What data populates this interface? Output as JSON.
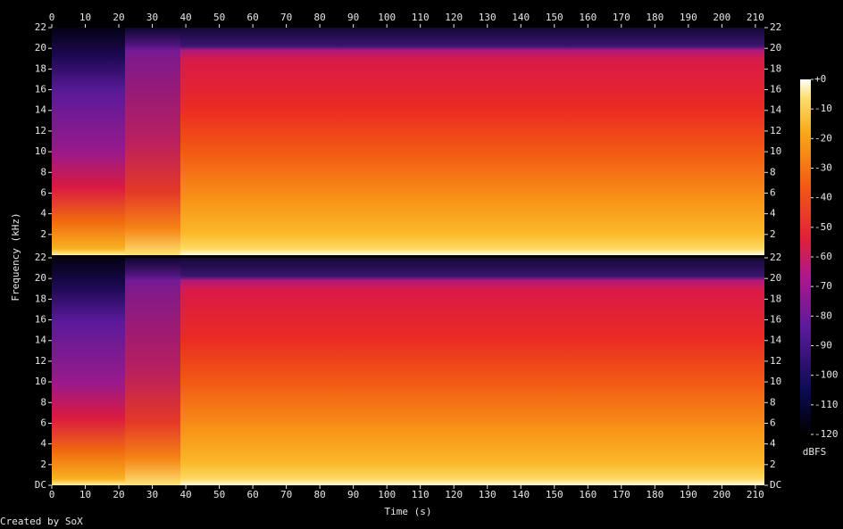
{
  "chart_data": [
    {
      "type": "spectrogram",
      "xlabel": "Time (s)",
      "ylabel": "Frequency (kHz)",
      "xlim": [
        0,
        212.7
      ],
      "xticks": [
        0,
        10,
        20,
        30,
        40,
        50,
        60,
        70,
        80,
        90,
        100,
        110,
        120,
        130,
        140,
        150,
        160,
        170,
        180,
        190,
        200,
        210
      ],
      "ylim": [
        0,
        22
      ],
      "yticks": [
        2,
        4,
        6,
        8,
        10,
        12,
        14,
        16,
        18,
        20,
        22
      ]
    },
    {
      "type": "spectrogram",
      "xlim": [
        0,
        212.7
      ],
      "xticks": [
        0,
        10,
        20,
        30,
        40,
        50,
        60,
        70,
        80,
        90,
        100,
        110,
        120,
        130,
        140,
        150,
        160,
        170,
        180,
        190,
        200,
        210
      ],
      "ylim": [
        0,
        22
      ],
      "yticks": [
        {
          "value": 0,
          "label": "DC"
        },
        2,
        4,
        6,
        8,
        10,
        12,
        14,
        16,
        18,
        20,
        22
      ]
    }
  ],
  "colorbar": {
    "label": "dBFS",
    "lim": [
      -120,
      0
    ],
    "ticks": [
      {
        "value": 0,
        "label": "+0"
      },
      -10,
      -20,
      -30,
      -40,
      -50,
      -60,
      -70,
      -80,
      -90,
      -100,
      -110,
      -120
    ]
  },
  "footer": "Created by SoX"
}
